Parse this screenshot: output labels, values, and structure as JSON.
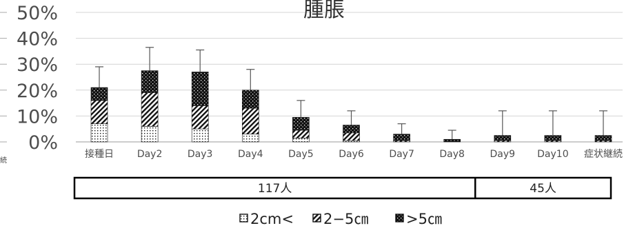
{
  "chart_data": {
    "type": "bar",
    "stacked": true,
    "title": "腫脹",
    "ylim": [
      0,
      50
    ],
    "y_ticks": [
      "0%",
      "10%",
      "20%",
      "30%",
      "40%",
      "50%"
    ],
    "categories": [
      "接種日",
      "Day2",
      "Day3",
      "Day4",
      "Day5",
      "Day6",
      "Day7",
      "Day8",
      "Day9",
      "Day10",
      "症状継続"
    ],
    "series": [
      {
        "name": "2cm<",
        "values": [
          7,
          6,
          5,
          3,
          1.5,
          0.5,
          0,
          0,
          0,
          0,
          0
        ]
      },
      {
        "name": "2-5cm",
        "values": [
          9,
          13,
          9,
          10,
          3,
          3,
          0.5,
          0,
          0.5,
          0.5,
          0.5
        ]
      },
      {
        "name": ">5cm",
        "values": [
          5,
          8.5,
          13,
          7,
          5,
          3,
          2.5,
          1,
          2,
          2,
          2
        ]
      }
    ],
    "error_high": [
      29,
      36.5,
      35.5,
      28,
      16,
      12,
      7,
      4.5,
      12,
      12,
      12
    ],
    "legend_position": "bottom",
    "grid": true,
    "groups": [
      {
        "label": "117人",
        "from": 0,
        "to": 7
      },
      {
        "label": "45人",
        "from": 8,
        "to": 10
      }
    ],
    "left_fragment": "続"
  },
  "legend": {
    "items": [
      {
        "label": "2cm<"
      },
      {
        "label": "2−5㎝"
      },
      {
        "label": ">5㎝"
      }
    ]
  }
}
